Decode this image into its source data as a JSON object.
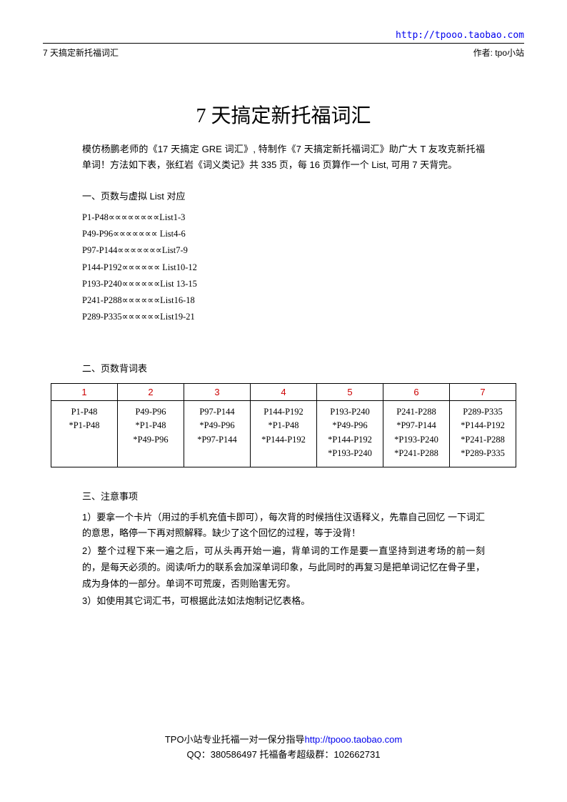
{
  "top_url": "http://tpooo.taobao.com",
  "header": {
    "left": "7 天搞定新托福词汇",
    "right": "作者: tpo小站"
  },
  "title": "7 天搞定新托福词汇",
  "intro": "模仿杨鹏老师的《17 天搞定 GRE 词汇》, 特制作《7 天搞定新托福词汇》助广大 T 友攻克新托福单词！方法如下表，张红岩《词义类记》共 335 页，每 16 页算作一个 List,  可用 7 天背完。",
  "section1_heading": "一、页数与虚拟 List 对应",
  "list_mappings": [
    "P1-P48∝∝∝∝∝∝∝∝List1-3",
    "P49-P96∝∝∝∝∝∝∝  List4-6",
    "P97-P144∝∝∝∝∝∝∝List7-9",
    "P144-P192∝∝∝∝∝∝  List10-12",
    "P193-P240∝∝∝∝∝∝List 13-15",
    "P241-P288∝∝∝∝∝∝List16-18",
    "P289-P335∝∝∝∝∝∝List19-21"
  ],
  "section2_heading": "二、页数背词表",
  "table": {
    "headers": [
      "1",
      "2",
      "3",
      "4",
      "5",
      "6",
      "7"
    ],
    "header_color": "#cc0000",
    "border_color": "#000000",
    "cells": [
      "P1-P48<br>*P1-P48",
      "P49-P96<br>*P1-P48<br>*P49-P96",
      "P97-P144<br>*P49-P96<br>*P97-P144",
      "P144-P192<br>*P1-P48<br>*P144-P192",
      "P193-P240<br>*P49-P96<br>*P144-P192<br>*P193-P240",
      "P241-P288<br>*P97-P144<br>*P193-P240<br>*P241-P288",
      "P289-P335<br>*P144-P192<br>*P241-P288<br>*P289-P335"
    ]
  },
  "section3_heading": "三、注意事项",
  "notes": [
    "1）要拿一个卡片（用过的手机充值卡即可），每次背的时候挡住汉语释义，先靠自己回忆 一下词汇的意思，略停一下再对照解释。缺少了这个回忆的过程，等于没背！",
    "2）整个过程下来一遍之后，可从头再开始一遍，背单词的工作是要一直坚持到进考场的前一刻的，是每天必须的。阅读/听力的联系会加深单词印象，与此同时的再复习是把单词记忆在骨子里，成为身体的一部分。单词不可荒废，否则贻害无穷。",
    "3）如使用其它词汇书，可根据此法如法炮制记忆表格。"
  ],
  "footer": {
    "line1_prefix": "TPO小站专业托福一对一保分指导",
    "line1_url": "http://tpooo.taobao.com",
    "line2": "QQ：380586497 托福备考超级群：102662731"
  },
  "colors": {
    "text": "#000000",
    "link": "#0000ee",
    "header_red": "#cc0000",
    "background": "#ffffff"
  }
}
